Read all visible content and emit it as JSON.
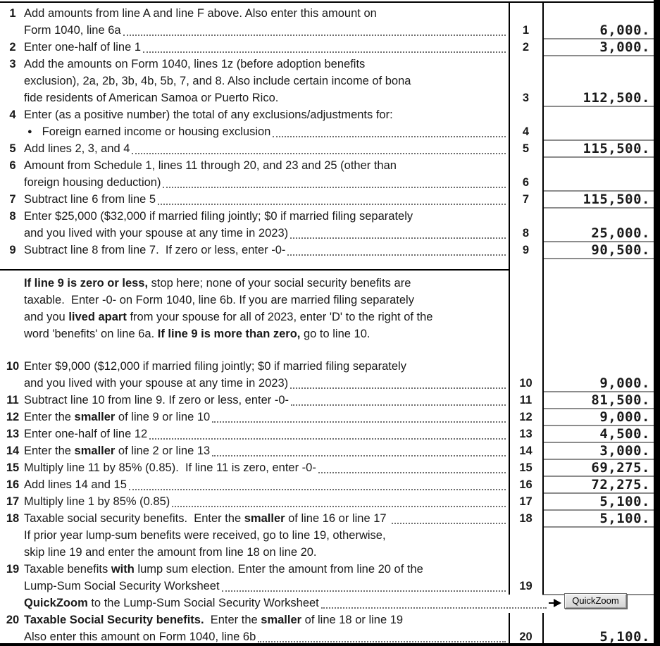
{
  "form": {
    "colors": {
      "frame": "#000000",
      "entry_underline": "#8c8c8c",
      "leader_dots": "#6e6e6e",
      "button_face": "#d9d9d9"
    },
    "quickzoom": {
      "label": "QuickZoom"
    },
    "rows": [
      {
        "num": "1",
        "segs": [
          [
            "Add amounts from line A and line F above. Also enter this amount on",
            false
          ]
        ]
      },
      {
        "segs": [
          [
            "Form 1040, line 6a",
            false
          ]
        ],
        "leader": true,
        "rnum": "1",
        "value": "6,000.",
        "ul": true
      },
      {
        "num": "2",
        "segs": [
          [
            "Enter one-half of line 1",
            false
          ]
        ],
        "leader": true,
        "rnum": "2",
        "value": "3,000.",
        "ul": true
      },
      {
        "num": "3",
        "segs": [
          [
            "Add the amounts on Form 1040, lines 1z (before adoption benefits",
            false
          ]
        ]
      },
      {
        "segs": [
          [
            "exclusion), 2a, 2b, 3b, 4b, 5b, 7, and 8. Also include certain income of bona",
            false
          ]
        ]
      },
      {
        "segs": [
          [
            "fide residents of American Samoa or Puerto Rico.",
            false
          ]
        ],
        "rnum": "3",
        "value": "112,500.",
        "ul": true
      },
      {
        "num": "4",
        "segs": [
          [
            "Enter (as a positive number) the total of any exclusions/adjustments for:",
            false
          ]
        ]
      },
      {
        "bullet": true,
        "segs": [
          [
            "Foreign earned income or housing exclusion",
            false
          ]
        ],
        "leader": true,
        "rnum": "4",
        "value": "",
        "ul": true
      },
      {
        "num": "5",
        "segs": [
          [
            "Add lines 2, 3, and 4",
            false
          ]
        ],
        "leader": true,
        "rnum": "5",
        "value": "115,500.",
        "ul": true
      },
      {
        "num": "6",
        "segs": [
          [
            "Amount from Schedule 1, lines 11 through 20, and 23 and 25 (other than",
            false
          ]
        ]
      },
      {
        "segs": [
          [
            "foreign housing deduction)",
            false
          ]
        ],
        "leader": true,
        "rnum": "6",
        "value": "",
        "ul": true
      },
      {
        "num": "7",
        "segs": [
          [
            "Subtract line 6 from line 5",
            false
          ]
        ],
        "leader": true,
        "rnum": "7",
        "value": "115,500.",
        "ul": true
      },
      {
        "num": "8",
        "segs": [
          [
            "Enter $25,000 ($32,000 if married filing jointly; $0 if married filing separately",
            false
          ]
        ]
      },
      {
        "segs": [
          [
            "and you lived with your spouse at any time in 2023)",
            false
          ]
        ],
        "leader": true,
        "rnum": "8",
        "value": "25,000.",
        "ul": true
      },
      {
        "num": "9",
        "segs": [
          [
            "Subtract line 8 from line 7.  If zero or less, enter -0-",
            false
          ]
        ],
        "leader": true,
        "rnum": "9",
        "value": "90,500.",
        "ul": true
      },
      {
        "type": "gap",
        "h": 14
      },
      {
        "type": "sep"
      },
      {
        "type": "gap",
        "h": 7
      },
      {
        "segs": [
          [
            "If line 9 is zero or less,",
            true
          ],
          [
            " stop here; none of your social security benefits are",
            false
          ]
        ]
      },
      {
        "segs": [
          [
            "taxable.  Enter -0- on Form 1040, line 6b. If you are married filing separately",
            false
          ]
        ]
      },
      {
        "segs": [
          [
            "and you ",
            false
          ],
          [
            "lived apart",
            true
          ],
          [
            " from your spouse for all of 2023, enter 'D' to the right of the",
            false
          ]
        ]
      },
      {
        "segs": [
          [
            "word 'benefits' on line 6a. ",
            false
          ],
          [
            "If line 9 is more than zero,",
            true
          ],
          [
            " go to line 10.",
            false
          ]
        ]
      },
      {
        "type": "gap",
        "h": 22
      },
      {
        "num": "10",
        "segs": [
          [
            "Enter $9,000 ($12,000 if married filing jointly; $0 if married filing separately",
            false
          ]
        ]
      },
      {
        "segs": [
          [
            "and you lived with your spouse at any time in 2023)",
            false
          ]
        ],
        "leader": true,
        "rnum": "10",
        "value": "9,000.",
        "ul": true
      },
      {
        "num": "11",
        "segs": [
          [
            "Subtract line 10 from line 9. If zero or less, enter -0-",
            false
          ]
        ],
        "leader": true,
        "rnum": "11",
        "value": "81,500.",
        "ul": true
      },
      {
        "num": "12",
        "segs": [
          [
            "Enter the ",
            false
          ],
          [
            "smaller",
            true
          ],
          [
            " of line 9 or line 10",
            false
          ]
        ],
        "leader": true,
        "rnum": "12",
        "value": "9,000.",
        "ul": true
      },
      {
        "num": "13",
        "segs": [
          [
            "Enter one-half of line 12",
            false
          ]
        ],
        "leader": true,
        "rnum": "13",
        "value": "4,500.",
        "ul": true
      },
      {
        "num": "14",
        "segs": [
          [
            "Enter the ",
            false
          ],
          [
            "smaller",
            true
          ],
          [
            " of line 2 or line 13",
            false
          ]
        ],
        "leader": true,
        "rnum": "14",
        "value": "3,000.",
        "ul": true
      },
      {
        "num": "15",
        "segs": [
          [
            "Multiply line 11 by 85% (0.85).  If line 11 is zero, enter -0-",
            false
          ]
        ],
        "leader": true,
        "rnum": "15",
        "value": "69,275.",
        "ul": true
      },
      {
        "num": "16",
        "segs": [
          [
            "Add lines 14 and 15",
            false
          ]
        ],
        "leader": true,
        "rnum": "16",
        "value": "72,275.",
        "ul": true
      },
      {
        "num": "17",
        "segs": [
          [
            "Multiply line 1 by 85% (0.85)",
            false
          ]
        ],
        "leader": true,
        "rnum": "17",
        "value": "5,100.",
        "ul": true
      },
      {
        "num": "18",
        "segs": [
          [
            "Taxable social security benefits.  Enter the ",
            false
          ],
          [
            "smaller",
            true
          ],
          [
            " of line 16 or line 17 ",
            false
          ]
        ],
        "leader": true,
        "rnum": "18",
        "value": "5,100.",
        "ul": true
      },
      {
        "segs": [
          [
            "If prior year lump-sum benefits were received, go to line 19, otherwise,",
            false
          ]
        ]
      },
      {
        "segs": [
          [
            "skip line 19 and enter the amount from line 18 on line 20.",
            false
          ]
        ]
      },
      {
        "num": "19",
        "segs": [
          [
            "Taxable benefits ",
            false
          ],
          [
            "with",
            true
          ],
          [
            " lump sum election. Enter the amount from line 20 of the",
            false
          ]
        ]
      },
      {
        "segs": [
          [
            "Lump-Sum Social Security Worksheet",
            false
          ]
        ],
        "leader": true,
        "rnum": "19",
        "value": "",
        "ul": true
      },
      {
        "type": "quickzoom",
        "segs": [
          [
            "QuickZoom",
            true
          ],
          [
            " to the Lump-Sum Social Security Worksheet",
            false
          ]
        ],
        "leader": true
      },
      {
        "num": "20",
        "segs": [
          [
            "Taxable Social Security benefits.",
            true
          ],
          [
            "  Enter the ",
            false
          ],
          [
            "smaller",
            true
          ],
          [
            " of line 18 or line 19",
            false
          ]
        ]
      },
      {
        "segs": [
          [
            "Also enter this amount on Form 1040, line 6b",
            false
          ]
        ],
        "leader": true,
        "rnum": "20",
        "value": "5,100.",
        "ul": false
      }
    ]
  }
}
